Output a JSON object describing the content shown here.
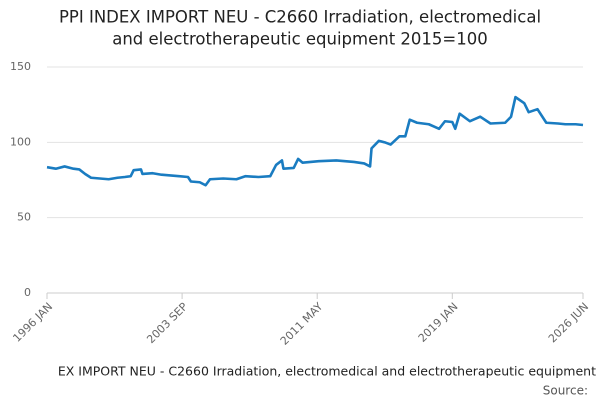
{
  "chart_data": {
    "type": "line",
    "title": [
      "PPI INDEX IMPORT NEU - C2660 Irradiation, electromedical",
      "and electrotherapeutic equipment 2015=100"
    ],
    "x": [
      "1996-01",
      "1996-07",
      "1997-01",
      "1997-07",
      "1997-11",
      "1998-03",
      "1998-07",
      "1999-01",
      "1999-07",
      "2000-01",
      "2000-06",
      "2000-10",
      "2000-12",
      "2001-05",
      "2001-06",
      "2002-01",
      "2002-07",
      "2003-01",
      "2003-07",
      "2004-01",
      "2004-03",
      "2004-09",
      "2005-01",
      "2005-04",
      "2006-01",
      "2006-10",
      "2007-04",
      "2008-01",
      "2008-09",
      "2009-01",
      "2009-05",
      "2009-06",
      "2010-01",
      "2010-04",
      "2010-07",
      "2011-06",
      "2012-06",
      "2013-06",
      "2014-01",
      "2014-05",
      "2014-06",
      "2014-11",
      "2015-03",
      "2015-07",
      "2016-01",
      "2016-05",
      "2016-08",
      "2017-01",
      "2017-09",
      "2018-04",
      "2018-08",
      "2019-01",
      "2019-03",
      "2019-06",
      "2020-01",
      "2020-08",
      "2021-03",
      "2022-01",
      "2022-05",
      "2022-08",
      "2023-02",
      "2023-05",
      "2023-11",
      "2024-05",
      "2025-01",
      "2025-06",
      "2026-01",
      "2026-06"
    ],
    "series": [
      {
        "name": "EX IMPORT NEU - C2660 Irradiation, electromedical and electrotherapeutic equipment",
        "color": "#1a7cc1",
        "values": [
          83.5,
          82.5,
          84,
          82.5,
          82,
          79,
          76.5,
          76,
          75.5,
          76.5,
          77,
          77.5,
          81.5,
          82,
          79,
          79.5,
          78.5,
          78,
          77.5,
          77,
          74,
          73.5,
          71.5,
          75.5,
          76,
          75.5,
          77.5,
          77,
          77.5,
          85,
          88,
          82.5,
          83,
          89,
          86.5,
          87.5,
          88,
          87,
          86,
          84,
          96,
          101,
          100,
          98.5,
          104,
          104,
          115,
          113,
          112,
          109,
          114,
          113.5,
          109,
          119,
          114,
          117,
          112.5,
          113,
          117,
          130,
          126,
          120,
          122,
          113,
          112.5,
          112,
          112,
          111.5
        ]
      }
    ],
    "xlim": [
      "1996-01",
      "2026-06"
    ],
    "xticks": [
      {
        "value": "1996-01",
        "label": "1996 JAN"
      },
      {
        "value": "2003-09",
        "label": "2003 SEP"
      },
      {
        "value": "2011-05",
        "label": "2011 MAY"
      },
      {
        "value": "2019-01",
        "label": "2019 JAN"
      },
      {
        "value": "2026-06",
        "label": "2026 JUN"
      }
    ],
    "ylim": [
      0,
      150
    ],
    "yticks": [
      0,
      50,
      100,
      150
    ],
    "grid": true,
    "source": "Source:"
  }
}
